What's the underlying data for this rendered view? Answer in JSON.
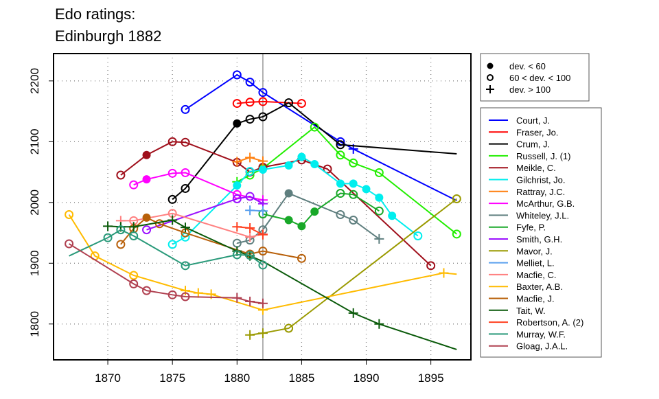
{
  "chart_data": {
    "type": "line",
    "title": [
      "Edo ratings:",
      "Edinburgh 1882"
    ],
    "xlabel": "",
    "ylabel": "",
    "xlim": [
      1865.8,
      1898.1
    ],
    "ylim": [
      1741,
      2245
    ],
    "xticks": [
      1870,
      1875,
      1880,
      1885,
      1890,
      1895
    ],
    "yticks": [
      1800,
      1900,
      2000,
      2100,
      2200
    ],
    "grid": true,
    "reference_line_x": 1882,
    "marker_legend": [
      {
        "marker": "f",
        "label": "dev. < 60"
      },
      {
        "marker": "o",
        "label": "60 < dev. < 100"
      },
      {
        "marker": "p",
        "label": "dev. > 100"
      }
    ],
    "legend_position": "right",
    "series": [
      {
        "name": "Court, J.",
        "color": "#0000ff",
        "points": [
          [
            1876,
            2153,
            "o"
          ],
          [
            1880,
            2210,
            "o"
          ],
          [
            1881,
            2198,
            "o"
          ],
          [
            1882,
            2181,
            "o"
          ],
          [
            1888,
            2100,
            "o"
          ],
          [
            1889,
            2088,
            "p"
          ],
          [
            1897,
            2003,
            "n"
          ]
        ]
      },
      {
        "name": "Fraser, Jo.",
        "color": "#ff0000",
        "points": [
          [
            1880,
            2163,
            "o"
          ],
          [
            1881,
            2165,
            "o"
          ],
          [
            1882,
            2166,
            "o"
          ],
          [
            1885,
            2163,
            "o"
          ]
        ]
      },
      {
        "name": "Crum, J.",
        "color": "#000000",
        "points": [
          [
            1875,
            2005,
            "o"
          ],
          [
            1876,
            2023,
            "o"
          ],
          [
            1880,
            2130,
            "f"
          ],
          [
            1881,
            2137,
            "o"
          ],
          [
            1882,
            2141,
            "o"
          ],
          [
            1884,
            2164,
            "o"
          ],
          [
            1888,
            2095,
            "o"
          ],
          [
            1897,
            2080,
            "n"
          ]
        ]
      },
      {
        "name": "Russell, J. (1)",
        "color": "#22ee00",
        "points": [
          [
            1880,
            2034,
            "p"
          ],
          [
            1881,
            2045,
            "o"
          ],
          [
            1882,
            2056,
            "o"
          ],
          [
            1886,
            2124,
            "o"
          ],
          [
            1888,
            2078,
            "o"
          ],
          [
            1889,
            2065,
            "o"
          ],
          [
            1891,
            2049,
            "o"
          ],
          [
            1897,
            1948,
            "o"
          ]
        ]
      },
      {
        "name": "Meikle, C.",
        "color": "#a0101c",
        "points": [
          [
            1871,
            2045,
            "o"
          ],
          [
            1873,
            2078,
            "f"
          ],
          [
            1875,
            2100,
            "o"
          ],
          [
            1876,
            2099,
            "o"
          ],
          [
            1880,
            2066,
            "o"
          ],
          [
            1881,
            2050,
            "o"
          ],
          [
            1882,
            2058,
            "o"
          ],
          [
            1885,
            2070,
            "o"
          ],
          [
            1887,
            2055,
            "o"
          ],
          [
            1895,
            1896,
            "o"
          ]
        ]
      },
      {
        "name": "Gilchrist, Jo.",
        "color": "#00eeee",
        "points": [
          [
            1875,
            1931,
            "o"
          ],
          [
            1876,
            1943,
            "o"
          ],
          [
            1880,
            2028,
            "f"
          ],
          [
            1881,
            2051,
            "o"
          ],
          [
            1882,
            2054,
            "f"
          ],
          [
            1884,
            2061,
            "f"
          ],
          [
            1885,
            2075,
            "f"
          ],
          [
            1886,
            2063,
            "f"
          ],
          [
            1888,
            2031,
            "f"
          ],
          [
            1889,
            2031,
            "f"
          ],
          [
            1890,
            2022,
            "f"
          ],
          [
            1891,
            2008,
            "f"
          ],
          [
            1892,
            1978,
            "f"
          ],
          [
            1894,
            1945,
            "o"
          ]
        ]
      },
      {
        "name": "Rattray, J.C.",
        "color": "#ff7f0e",
        "points": [
          [
            1880,
            2067,
            "p"
          ],
          [
            1881,
            2074,
            "p"
          ],
          [
            1882,
            2068,
            "p"
          ]
        ]
      },
      {
        "name": "McArthur, G.B.",
        "color": "#ff00ff",
        "points": [
          [
            1872,
            2029,
            "o"
          ],
          [
            1873,
            2038,
            "f"
          ],
          [
            1875,
            2048,
            "o"
          ],
          [
            1876,
            2049,
            "o"
          ],
          [
            1880,
            2013,
            "o"
          ],
          [
            1882,
            2004,
            "p"
          ]
        ]
      },
      {
        "name": "Whiteley, J.L.",
        "color": "#5f7f7f",
        "points": [
          [
            1880,
            1933,
            "o"
          ],
          [
            1881,
            1938,
            "o"
          ],
          [
            1882,
            1955,
            "o"
          ],
          [
            1884,
            2015,
            "f"
          ],
          [
            1888,
            1980,
            "o"
          ],
          [
            1889,
            1971,
            "o"
          ],
          [
            1891,
            1940,
            "p"
          ]
        ]
      },
      {
        "name": "Fyfe, P.",
        "color": "#18a828",
        "points": [
          [
            1882,
            1981,
            "o"
          ],
          [
            1884,
            1971,
            "f"
          ],
          [
            1885,
            1961,
            "f"
          ],
          [
            1886,
            1985,
            "f"
          ],
          [
            1888,
            2015,
            "o"
          ],
          [
            1889,
            2013,
            "o"
          ],
          [
            1891,
            1986,
            "o"
          ]
        ]
      },
      {
        "name": "Smith, G.H.",
        "color": "#9b10ff",
        "points": [
          [
            1873,
            1955,
            "o"
          ],
          [
            1880,
            2006,
            "o"
          ],
          [
            1881,
            2010,
            "o"
          ],
          [
            1882,
            1998,
            "p"
          ]
        ]
      },
      {
        "name": "Mavor, J.",
        "color": "#9a9a00",
        "points": [
          [
            1881,
            1782,
            "p"
          ],
          [
            1882,
            1785,
            "p"
          ],
          [
            1884,
            1793,
            "o"
          ],
          [
            1897,
            2006,
            "o"
          ]
        ]
      },
      {
        "name": "Melliet, L.",
        "color": "#5aa0ee",
        "points": [
          [
            1881,
            1987,
            "p"
          ],
          [
            1882,
            1986,
            "p"
          ]
        ]
      },
      {
        "name": "Macfie, C.",
        "color": "#ff8080",
        "points": [
          [
            1871,
            1970,
            "p"
          ],
          [
            1872,
            1970,
            "o"
          ],
          [
            1875,
            1982,
            "o"
          ],
          [
            1881,
            1943,
            "p"
          ],
          [
            1882,
            1948,
            "p"
          ]
        ]
      },
      {
        "name": "Baxter, A.B.",
        "color": "#ffbb00",
        "points": [
          [
            1867,
            1980,
            "o"
          ],
          [
            1869,
            1912,
            "o"
          ],
          [
            1872,
            1880,
            "o"
          ],
          [
            1876,
            1855,
            "p"
          ],
          [
            1877,
            1851,
            "p"
          ],
          [
            1878,
            1849,
            "p"
          ],
          [
            1882,
            1823,
            "p"
          ],
          [
            1896,
            1884,
            "p"
          ],
          [
            1897,
            1882,
            "n"
          ]
        ]
      },
      {
        "name": "Macfie, J.",
        "color": "#b8600a",
        "points": [
          [
            1871,
            1931,
            "o"
          ],
          [
            1872,
            1957,
            "o"
          ],
          [
            1873,
            1975,
            "f"
          ],
          [
            1874,
            1965,
            "o"
          ],
          [
            1876,
            1950,
            "o"
          ],
          [
            1881,
            1915,
            "o"
          ],
          [
            1882,
            1920,
            "o"
          ],
          [
            1885,
            1908,
            "o"
          ]
        ]
      },
      {
        "name": "Tait, W.",
        "color": "#0a5a0a",
        "points": [
          [
            1870,
            1961,
            "p"
          ],
          [
            1871,
            1960,
            "p"
          ],
          [
            1872,
            1960,
            "p"
          ],
          [
            1875,
            1971,
            "p"
          ],
          [
            1876,
            1959,
            "p"
          ],
          [
            1880,
            1920,
            "p"
          ],
          [
            1881,
            1912,
            "p"
          ],
          [
            1882,
            1903,
            "n"
          ],
          [
            1889,
            1818,
            "p"
          ],
          [
            1891,
            1800,
            "p"
          ],
          [
            1897,
            1758,
            "n"
          ]
        ]
      },
      {
        "name": "Robertson, A. (2)",
        "color": "#ff4020",
        "points": [
          [
            1880,
            1960,
            "p"
          ],
          [
            1881,
            1958,
            "p"
          ],
          [
            1882,
            1947,
            "p"
          ]
        ]
      },
      {
        "name": "Murray, W.F.",
        "color": "#2a9a7a",
        "points": [
          [
            1867,
            1912,
            "n"
          ],
          [
            1870,
            1942,
            "o"
          ],
          [
            1871,
            1955,
            "o"
          ],
          [
            1872,
            1945,
            "o"
          ],
          [
            1876,
            1896,
            "o"
          ],
          [
            1880,
            1914,
            "o"
          ],
          [
            1881,
            1913,
            "o"
          ],
          [
            1882,
            1897,
            "o"
          ]
        ]
      },
      {
        "name": "Gloag, J.A.L.",
        "color": "#b04050",
        "points": [
          [
            1867,
            1932,
            "o"
          ],
          [
            1872,
            1866,
            "o"
          ],
          [
            1873,
            1855,
            "o"
          ],
          [
            1875,
            1848,
            "o"
          ],
          [
            1876,
            1845,
            "o"
          ],
          [
            1880,
            1843,
            "p"
          ],
          [
            1881,
            1837,
            "p"
          ],
          [
            1882,
            1834,
            "p"
          ]
        ]
      }
    ]
  }
}
